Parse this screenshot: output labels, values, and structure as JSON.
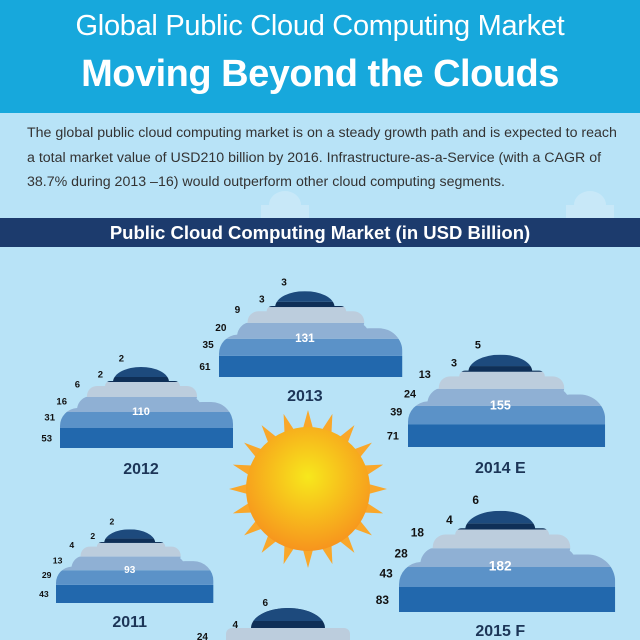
{
  "header": {
    "title_line1": "Global Public Cloud Computing Market",
    "title_line2": "Moving Beyond the Clouds",
    "background_color": "#17a8dc"
  },
  "intro": "The global public cloud computing market  is on a steady growth path and is expected to reach a total market value of USD210 billion by 2016. Infrastructure-as-a-Service (with a CAGR of 38.7% during 2013 –16) would outperform other cloud computing segments.",
  "chart_data": {
    "type": "bar",
    "title": "Public Cloud Computing Market (in USD Billion)",
    "style": "stacked clouds, one per year; segment values listed from bottom to top",
    "segment_colors": [
      "#2268ad",
      "#5b92c8",
      "#8fb0d4",
      "#bccddd",
      "#0f2f57",
      "#1d4a7d"
    ],
    "categories": [
      "2011",
      "2012",
      "2013",
      "2014 E",
      "2015 F"
    ],
    "clouds": [
      {
        "year": "2011",
        "total": "93",
        "segments": [
          43,
          29,
          13,
          4,
          2,
          2
        ]
      },
      {
        "year": "2012",
        "total": "110",
        "segments": [
          53,
          31,
          16,
          6,
          2,
          2
        ]
      },
      {
        "year": "2013",
        "total": "131",
        "segments": [
          61,
          35,
          20,
          9,
          3,
          3
        ]
      },
      {
        "year": "2014 E",
        "total": "155",
        "segments": [
          71,
          39,
          24,
          13,
          3,
          5
        ]
      },
      {
        "year": "2015 F",
        "total": "182",
        "segments": [
          83,
          43,
          28,
          18,
          4,
          6
        ]
      }
    ],
    "partial_cloud_visible_segments_top_down": [
      6,
      4,
      24
    ],
    "sun_colors": [
      "#f7e81c",
      "#f7941d"
    ]
  }
}
